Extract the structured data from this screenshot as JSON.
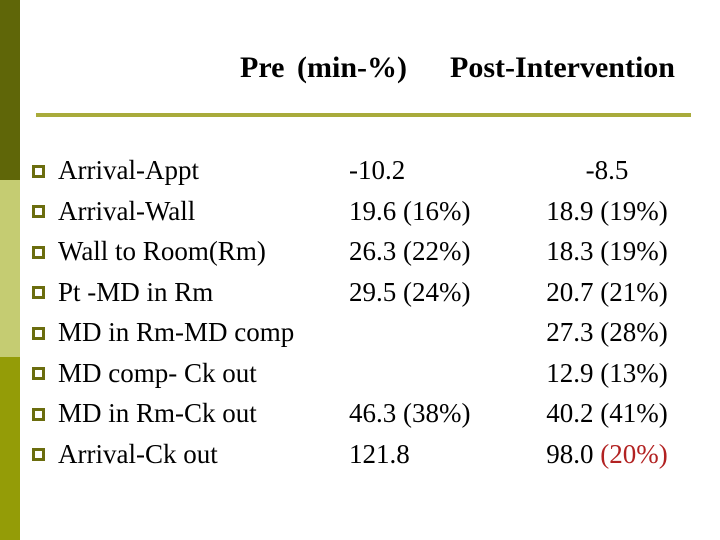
{
  "title": {
    "pre_label": "Pre",
    "unit_label": "(min-%)",
    "post_label": "Post-Intervention"
  },
  "rows": [
    {
      "label": "Arrival-Appt",
      "pre": "-10.2",
      "post": "-8.5",
      "post_red": ""
    },
    {
      "label": "Arrival-Wall",
      "pre": "19.6 (16%)",
      "post": "18.9 (19%)",
      "post_red": ""
    },
    {
      "label": "Wall to Room(Rm)",
      "pre": "26.3 (22%)",
      "post": "18.3 (19%)",
      "post_red": ""
    },
    {
      "label": "Pt -MD in Rm",
      "pre": "29.5 (24%)",
      "post": "20.7 (21%)",
      "post_red": ""
    },
    {
      "label": "MD in Rm-MD comp",
      "pre": "",
      "post": "27.3 (28%)",
      "post_red": ""
    },
    {
      "label": "MD comp- Ck out",
      "pre": "",
      "post": "12.9 (13%)",
      "post_red": ""
    },
    {
      "label": "MD in Rm-Ck out",
      "pre": "46.3 (38%)",
      "post": "40.2 (41%)",
      "post_red": ""
    },
    {
      "label": "Arrival-Ck out",
      "pre": "121.8",
      "post": "98.0",
      "post_red": "(20%)"
    }
  ],
  "colors": {
    "accent_bar_top": "#5f6608",
    "accent_bar_middle": "#c5cc72",
    "accent_bar_bottom": "#949c07",
    "underline": "#a9ab3b",
    "bullet_outline": "#6b6d0e",
    "highlight_red": "#b22222",
    "text": "#000000"
  }
}
